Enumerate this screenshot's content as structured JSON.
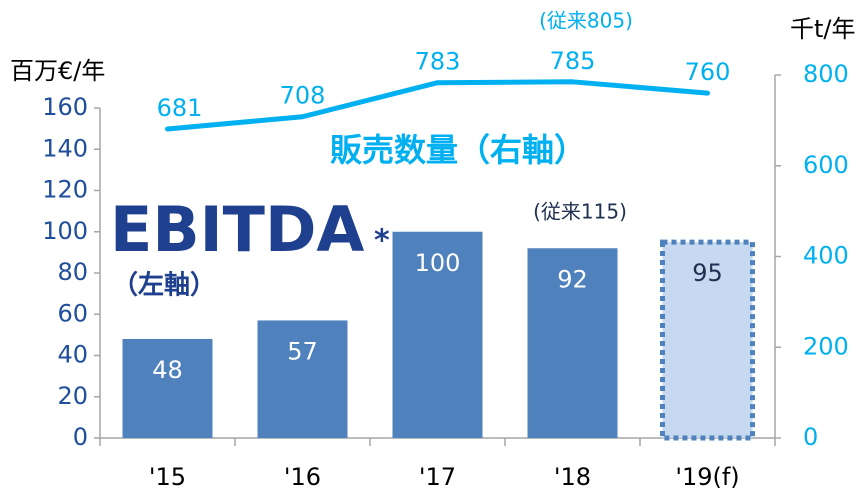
{
  "chart_data": {
    "type": "bar",
    "categories": [
      "'15",
      "'16",
      "'17",
      "'18",
      "'19(f)"
    ],
    "series": [
      {
        "name": "EBITDA",
        "type": "bar",
        "color": "#4f81bd",
        "values": [
          48,
          57,
          100,
          92,
          95
        ],
        "colors": [
          "#4f81bd",
          "#4f81bd",
          "#4f81bd",
          "#4f81bd",
          "#c6d9f1"
        ],
        "dashed": [
          false,
          false,
          false,
          false,
          true
        ]
      },
      {
        "name": "販売数量（右軸）",
        "type": "line",
        "axis": "y2",
        "color": "#00b0f0",
        "values": [
          681,
          708,
          783,
          785,
          760
        ]
      }
    ],
    "ylim": [
      0,
      176
    ],
    "yticks": [
      0,
      20,
      40,
      60,
      80,
      100,
      120,
      140,
      160
    ],
    "y2lim": [
      0,
      800
    ],
    "y2ticks": [
      0,
      200,
      400,
      600,
      800
    ],
    "ylabel": "百万€/年",
    "y2label": "千t/年",
    "annotations": [
      "*",
      "（左軸）",
      "(従来805)",
      "(従来115)"
    ]
  }
}
